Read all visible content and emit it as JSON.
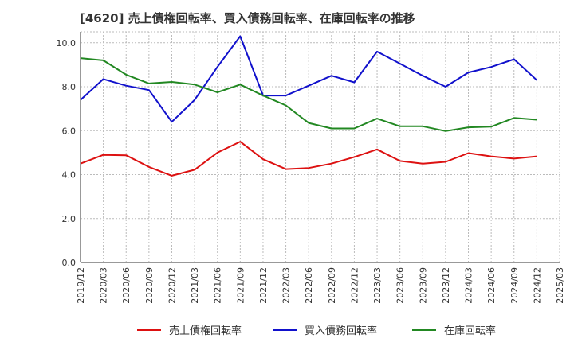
{
  "chart_data": {
    "type": "line",
    "title": "[4620]  売上債権回転率、買入債務回転率、在庫回転率の推移",
    "xlabel": "",
    "ylabel": "",
    "ylim": [
      0,
      10.5
    ],
    "yticks": [
      0.0,
      2.0,
      4.0,
      6.0,
      8.0,
      10.0
    ],
    "ytick_labels": [
      "0.0",
      "2.0",
      "4.0",
      "6.0",
      "8.0",
      "10.0"
    ],
    "categories": [
      "2019/12",
      "2020/03",
      "2020/06",
      "2020/09",
      "2020/12",
      "2021/03",
      "2021/06",
      "2021/09",
      "2021/12",
      "2022/03",
      "2022/06",
      "2022/09",
      "2022/12",
      "2023/03",
      "2023/06",
      "2023/09",
      "2023/12",
      "2024/03",
      "2024/06",
      "2024/09",
      "2024/12",
      "2025/03"
    ],
    "grid": true,
    "legend_position": "bottom",
    "series": [
      {
        "name": "売上債権回転率",
        "color": "#dd1111",
        "values": [
          4.5,
          4.9,
          4.88,
          4.35,
          3.95,
          4.22,
          5.0,
          5.5,
          4.7,
          4.25,
          4.3,
          4.5,
          4.8,
          5.15,
          4.62,
          4.5,
          4.58,
          4.98,
          4.83,
          4.73,
          4.83,
          null
        ]
      },
      {
        "name": "買入債務回転率",
        "color": "#1111cc",
        "values": [
          7.4,
          8.35,
          8.05,
          7.85,
          6.4,
          7.4,
          8.9,
          10.3,
          7.6,
          7.6,
          8.05,
          8.5,
          8.2,
          9.6,
          9.05,
          8.5,
          8.0,
          8.65,
          8.9,
          9.25,
          8.3,
          null
        ]
      },
      {
        "name": "在庫回転率",
        "color": "#228822",
        "values": [
          9.3,
          9.2,
          8.55,
          8.15,
          8.22,
          8.1,
          7.75,
          8.1,
          7.6,
          7.15,
          6.35,
          6.1,
          6.1,
          6.55,
          6.2,
          6.2,
          5.98,
          6.15,
          6.18,
          6.58,
          6.5,
          null
        ]
      }
    ]
  }
}
